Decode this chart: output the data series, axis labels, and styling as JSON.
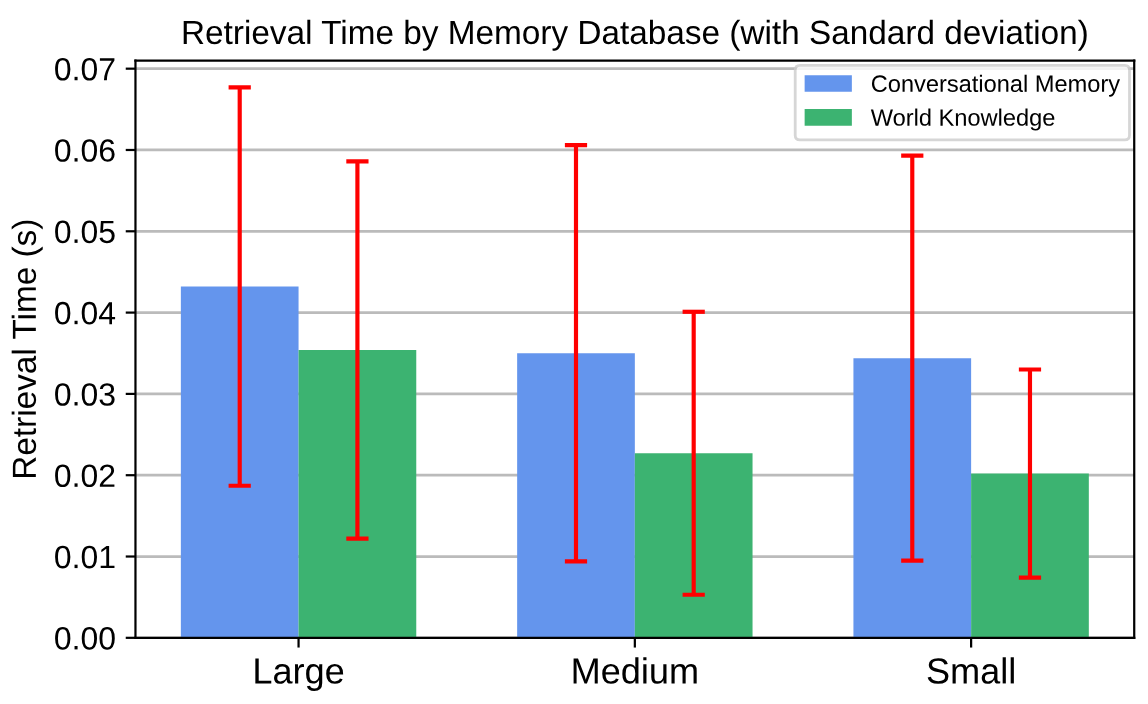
{
  "chart_data": {
    "type": "bar",
    "title": "Retrieval Time by Memory Database (with Sandard deviation)",
    "ylabel": "Retrieval Time (s)",
    "categories": [
      "Large",
      "Medium",
      "Small"
    ],
    "series": [
      {
        "name": "Conversational Memory",
        "color": "#6495ed",
        "values": [
          0.0432,
          0.035,
          0.0344
        ],
        "errors": [
          0.0245,
          0.0256,
          0.0249
        ]
      },
      {
        "name": "World Knowledge",
        "color": "#3cb371",
        "values": [
          0.0354,
          0.0227,
          0.0202
        ],
        "errors": [
          0.0232,
          0.0174,
          0.0128
        ]
      }
    ],
    "ylim": [
      0,
      0.071
    ],
    "yticks": [
      {
        "value": 0,
        "label": "0.00"
      },
      {
        "value": 0.01,
        "label": "0.01"
      },
      {
        "value": 0.02,
        "label": "0.02"
      },
      {
        "value": 0.03,
        "label": "0.03"
      },
      {
        "value": 0.04,
        "label": "0.04"
      },
      {
        "value": 0.05,
        "label": "0.05"
      },
      {
        "value": 0.06,
        "label": "0.06"
      },
      {
        "value": 0.07,
        "label": "0.07"
      }
    ],
    "grid": "y",
    "legend": "top right"
  }
}
